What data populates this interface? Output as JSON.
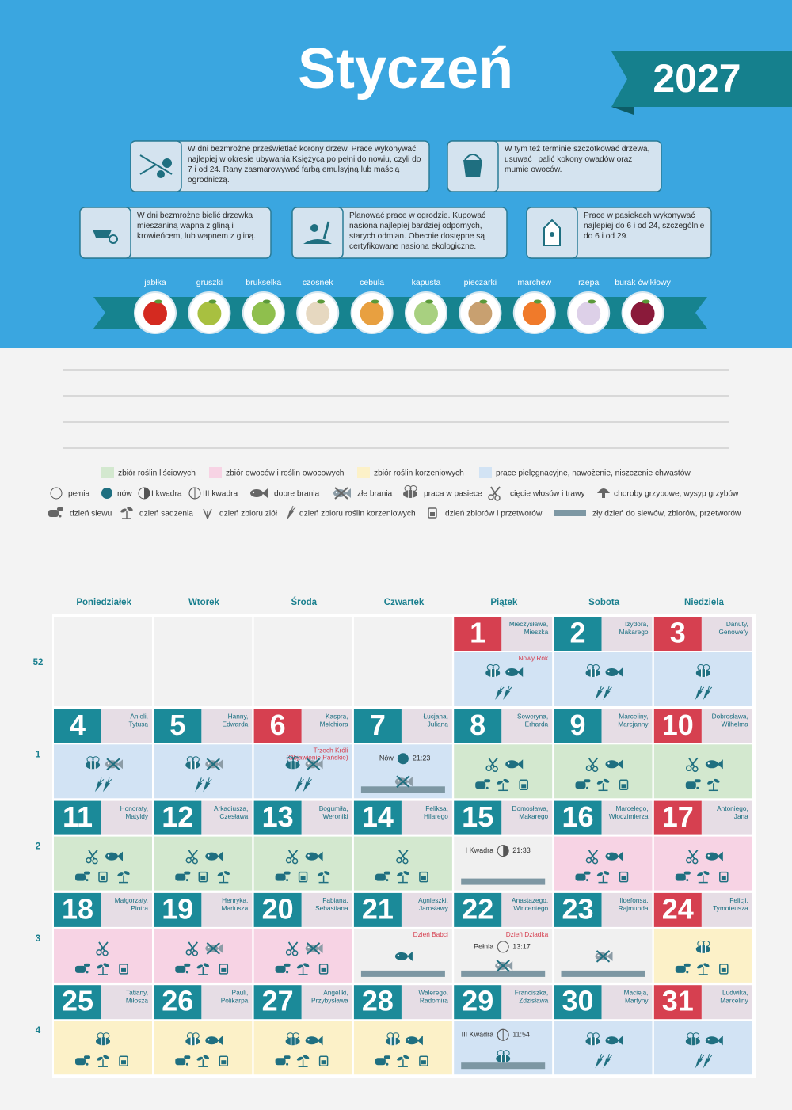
{
  "header": {
    "title": "Styczeń",
    "year": "2027"
  },
  "tips": [
    "W dni bezmrożne prześwietlać korony drzew. Prace wykonywać najlepiej w okresie ubywania Księżyca po pełni do nowiu, czyli do 7 i od 24. Rany zasmarowywać farbą emulsyjną lub maścią ogrodniczą.",
    "W tym też terminie szczotkować drzewa, usuwać i palić kokony owadów oraz mumie owoców.",
    "W dni bezmrożne bielić drzewka mieszaniną wapna z gliną i krowieńcem, lub wapnem z gliną.",
    "Planować prace w ogrodzie. Kupować nasiona najlepiej bardziej odpornych, starych odmian. Obecnie dostępne są certyfikowane nasiona ekologiczne.",
    "Prace w pasiekach wykonywać najlepiej do 6 i od 24, szczególnie do 6 i od 29."
  ],
  "produce": [
    "jabłka",
    "gruszki",
    "brukselka",
    "czosnek",
    "cebula",
    "kapusta",
    "pieczarki",
    "marchew",
    "rzepa",
    "burak ćwikłowy"
  ],
  "legend": {
    "swatches": [
      {
        "label": "zbiór roślin liściowych",
        "color": "#d3e8cf"
      },
      {
        "label": "zbiór owoców i roślin owocowych",
        "color": "#f7d3e4"
      },
      {
        "label": "zbiór roślin korzeniowych",
        "color": "#fcf1c8"
      },
      {
        "label": "prace pielęgnacyjne, nawożenie, niszczenie chwastów",
        "color": "#d2e3f4"
      }
    ],
    "symbols": [
      "pełnia",
      "nów",
      "I kwadra",
      "III kwadra",
      "dobre brania",
      "złe brania",
      "praca w pasiece",
      "cięcie włosów i trawy",
      "choroby grzybowe, wysyp grzybów",
      "dzień siewu",
      "dzień sadzenia",
      "dzień zbioru ziół",
      "dzień zbioru roślin korzeniowych",
      "dzień zbiorów i przetworów",
      "zły dzień do siewów, zbiorów, przetworów"
    ]
  },
  "calendar": {
    "weekdays": [
      "Poniedziałek",
      "Wtorek",
      "Środa",
      "Czwartek",
      "Piątek",
      "Sobota",
      "Niedziela"
    ],
    "weeks": [
      52,
      1,
      2,
      3,
      4
    ],
    "days": [
      {
        "day": 1,
        "names": [
          "Mieczysława,",
          "Mieszka"
        ],
        "color": "#d64050",
        "bg": "#d2e3f4",
        "event": [
          "Nowy Rok"
        ]
      },
      {
        "day": 2,
        "names": [
          "Izydora,",
          "Makarego"
        ],
        "color": "#1b8a99",
        "bg": "#d2e3f4"
      },
      {
        "day": 3,
        "names": [
          "Danuty,",
          "Genowefy"
        ],
        "color": "#d64050",
        "bg": "#d2e3f4"
      },
      {
        "day": 4,
        "names": [
          "Anieli,",
          "Tytusa"
        ],
        "color": "#1b8a99",
        "bg": "#d2e3f4"
      },
      {
        "day": 5,
        "names": [
          "Hanny,",
          "Edwarda"
        ],
        "color": "#1b8a99",
        "bg": "#d2e3f4"
      },
      {
        "day": 6,
        "names": [
          "Kaspra,",
          "Melchiora"
        ],
        "color": "#d64050",
        "bg": "#d2e3f4",
        "event": [
          "Trzech Króli",
          "(Objawienie Pańskie)"
        ]
      },
      {
        "day": 7,
        "names": [
          "Łucjana,",
          "Juliana"
        ],
        "color": "#1b8a99",
        "bg": "#d2e3f4",
        "moon": {
          "label": "Nów",
          "time": "21:23"
        }
      },
      {
        "day": 8,
        "names": [
          "Seweryna,",
          "Erharda"
        ],
        "color": "#1b8a99",
        "bg": "#d3e8cf"
      },
      {
        "day": 9,
        "names": [
          "Marceliny,",
          "Marcjanny"
        ],
        "color": "#1b8a99",
        "bg": "#d3e8cf"
      },
      {
        "day": 10,
        "names": [
          "Dobrosława,",
          "Wilhelma"
        ],
        "color": "#d64050",
        "bg": "#d3e8cf"
      },
      {
        "day": 11,
        "names": [
          "Honoraty,",
          "Matyldy"
        ],
        "color": "#1b8a99",
        "bg": "#d3e8cf"
      },
      {
        "day": 12,
        "names": [
          "Arkadiusza,",
          "Czesława"
        ],
        "color": "#1b8a99",
        "bg": "#d3e8cf"
      },
      {
        "day": 13,
        "names": [
          "Bogumiła,",
          "Weroniki"
        ],
        "color": "#1b8a99",
        "bg": "#d3e8cf"
      },
      {
        "day": 14,
        "names": [
          "Feliksa,",
          "Hilarego"
        ],
        "color": "#1b8a99",
        "bg": "#d3e8cf"
      },
      {
        "day": 15,
        "names": [
          "Domosława,",
          "Makarego"
        ],
        "color": "#1b8a99",
        "bg": "#f0f0f0",
        "moon": {
          "label": "I Kwadra",
          "time": "21:33"
        }
      },
      {
        "day": 16,
        "names": [
          "Marcelego,",
          "Włodzimierza"
        ],
        "color": "#1b8a99",
        "bg": "#f7d3e4"
      },
      {
        "day": 17,
        "names": [
          "Antoniego,",
          "Jana"
        ],
        "color": "#d64050",
        "bg": "#f7d3e4"
      },
      {
        "day": 18,
        "names": [
          "Małgorzaty,",
          "Piotra"
        ],
        "color": "#1b8a99",
        "bg": "#f7d3e4"
      },
      {
        "day": 19,
        "names": [
          "Henryka,",
          "Mariusza"
        ],
        "color": "#1b8a99",
        "bg": "#f7d3e4"
      },
      {
        "day": 20,
        "names": [
          "Fabiana,",
          "Sebastiana"
        ],
        "color": "#1b8a99",
        "bg": "#f7d3e4"
      },
      {
        "day": 21,
        "names": [
          "Agnieszki,",
          "Jarosławy"
        ],
        "color": "#1b8a99",
        "bg": "#f0f0f0",
        "event": [
          "Dzień Babci"
        ]
      },
      {
        "day": 22,
        "names": [
          "Anastazego,",
          "Wincentego"
        ],
        "color": "#1b8a99",
        "bg": "#f0f0f0",
        "event": [
          "Dzień Dziadka"
        ],
        "moon": {
          "label": "Pełnia",
          "time": "13:17"
        }
      },
      {
        "day": 23,
        "names": [
          "Ildefonsa,",
          "Rajmunda"
        ],
        "color": "#1b8a99",
        "bg": "#f0f0f0"
      },
      {
        "day": 24,
        "names": [
          "Felicji,",
          "Tymoteusza"
        ],
        "color": "#d64050",
        "bg": "#fcf1c8"
      },
      {
        "day": 25,
        "names": [
          "Tatiany,",
          "Miłosza"
        ],
        "color": "#1b8a99",
        "bg": "#fcf1c8"
      },
      {
        "day": 26,
        "names": [
          "Pauli,",
          "Polikarpa"
        ],
        "color": "#1b8a99",
        "bg": "#fcf1c8"
      },
      {
        "day": 27,
        "names": [
          "Angeliki,",
          "Przybysława"
        ],
        "color": "#1b8a99",
        "bg": "#fcf1c8"
      },
      {
        "day": 28,
        "names": [
          "Walerego,",
          "Radomira"
        ],
        "color": "#1b8a99",
        "bg": "#fcf1c8"
      },
      {
        "day": 29,
        "names": [
          "Franciszka,",
          "Zdzisława"
        ],
        "color": "#1b8a99",
        "bg": "#d2e3f4",
        "moon": {
          "label": "III Kwadra",
          "time": "11:54"
        }
      },
      {
        "day": 30,
        "names": [
          "Macieja,",
          "Martyny"
        ],
        "color": "#1b8a99",
        "bg": "#d2e3f4"
      },
      {
        "day": 31,
        "names": [
          "Ludwika,",
          "Marceliny"
        ],
        "color": "#d64050",
        "bg": "#d2e3f4"
      }
    ]
  }
}
